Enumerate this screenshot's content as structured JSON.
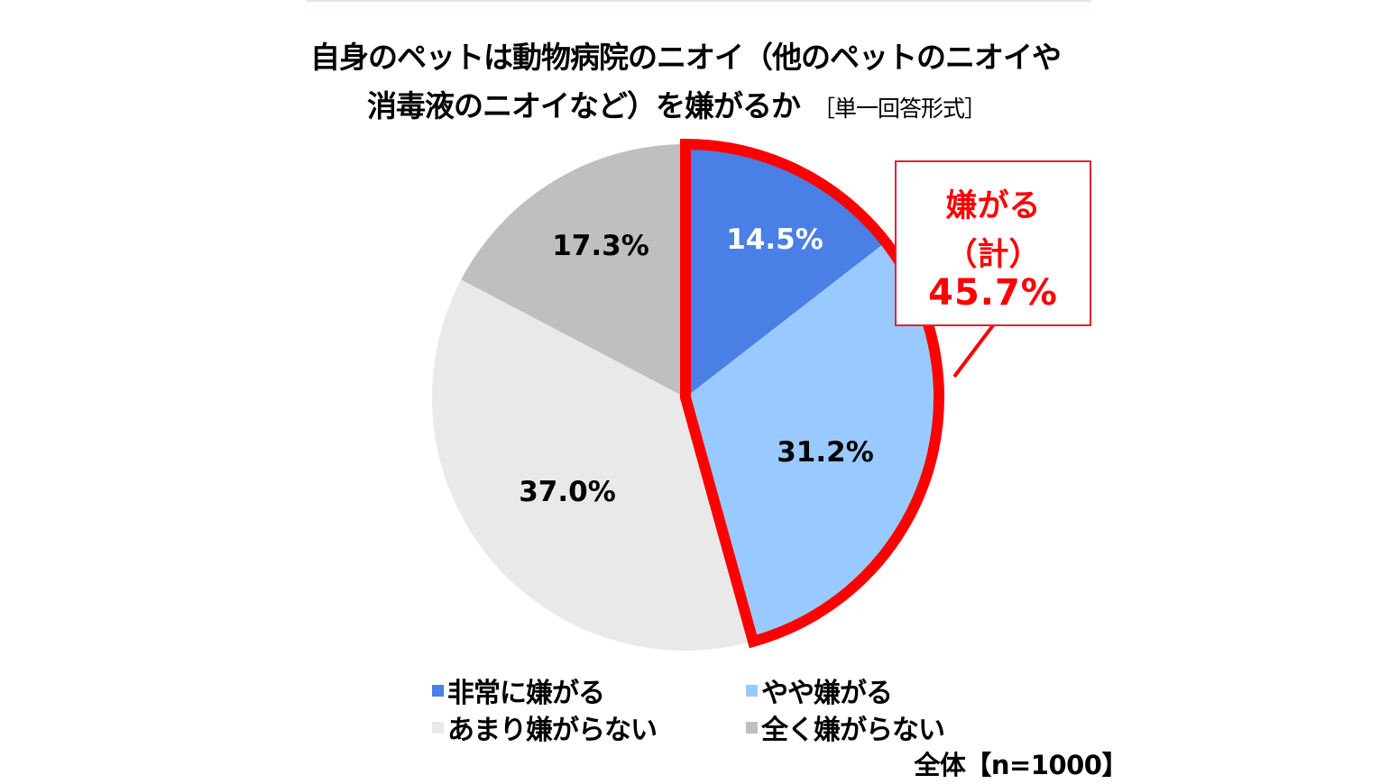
{
  "title": {
    "line1": "自身のペットは動物病院のニオイ（他のペットのニオイや",
    "line2": "消毒液のニオイなど）を嫌がるか",
    "format": "［単一回答形式］"
  },
  "callout": {
    "line1": "嫌がる",
    "line2": "（計）",
    "value": "45.7%"
  },
  "slices": [
    {
      "label": "非常に嫌がる",
      "value_text": "14.5%",
      "color": "#4a7fe6",
      "text_color": "#ffffff"
    },
    {
      "label": "やや嫌がる",
      "value_text": "31.2%",
      "color": "#99caff",
      "text_color": "#000000"
    },
    {
      "label": "あまり嫌がらない",
      "value_text": "37.0%",
      "color": "#e9e9e9",
      "text_color": "#000000"
    },
    {
      "label": "全く嫌がらない",
      "value_text": "17.3%",
      "color": "#bfbfbf",
      "text_color": "#000000"
    }
  ],
  "sample": "全体【n=1000】",
  "colors": {
    "highlight": "#ff0000",
    "callout_border": "#e1242b"
  },
  "chart_data": {
    "type": "pie",
    "title": "自身のペットは動物病院のニオイ（他のペットのニオイや消毒液のニオイなど）を嫌がるか ［単一回答形式］",
    "categories": [
      "非常に嫌がる",
      "やや嫌がる",
      "あまり嫌がらない",
      "全く嫌がらない"
    ],
    "values": [
      14.5,
      31.2,
      37.0,
      17.3
    ],
    "unit": "%",
    "start_angle": "12 o'clock, clockwise",
    "legend_position": "bottom",
    "annotations": [
      {
        "text": "嫌がる（計）45.7%",
        "covers": [
          "非常に嫌がる",
          "やや嫌がる"
        ],
        "highlight": "red outline"
      }
    ],
    "sample_size": "全体【n=1000】"
  }
}
